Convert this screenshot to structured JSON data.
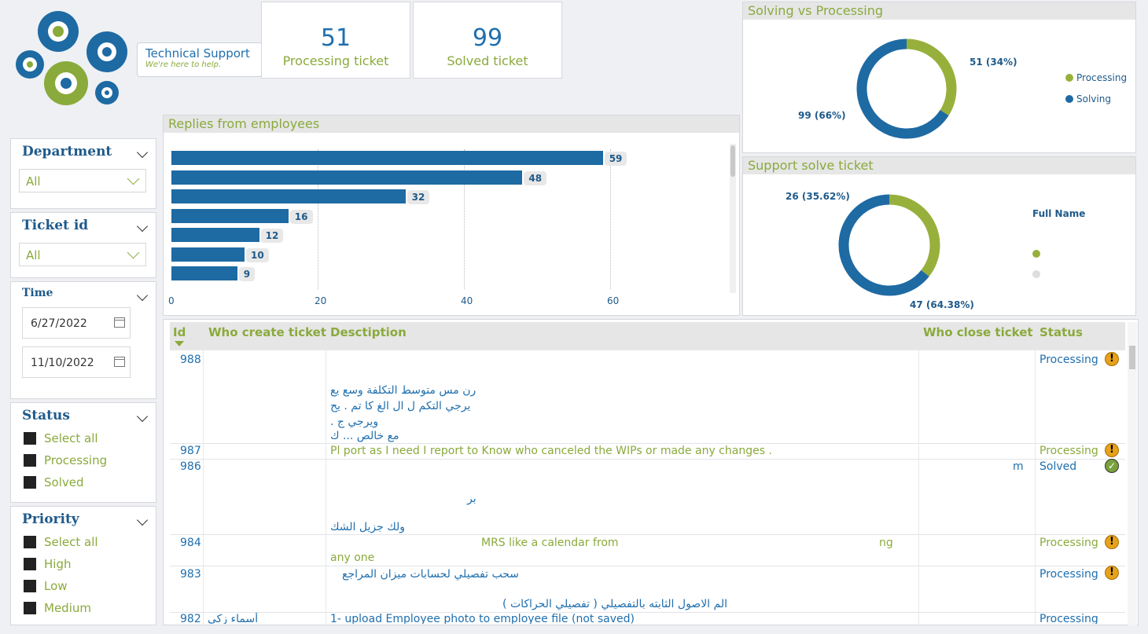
{
  "logo": {
    "title": "Technical Support",
    "tagline": "We're here to help."
  },
  "kpis": [
    {
      "value": "51",
      "label": "Processing ticket"
    },
    {
      "value": "99",
      "label": "Solved ticket"
    }
  ],
  "slicers": {
    "department": {
      "title": "Department",
      "value": "All"
    },
    "ticket_id": {
      "title": "Ticket id",
      "value": "All"
    },
    "time": {
      "title": "Time",
      "start": "6/27/2022",
      "end": "11/10/2022"
    },
    "status": {
      "title": "Status",
      "options": [
        "Select all",
        "Processing",
        "Solved"
      ]
    },
    "priority": {
      "title": "Priority",
      "options": [
        "Select all",
        "High",
        "Low",
        "Medium"
      ]
    }
  },
  "replies_chart": {
    "title": "Replies from employees"
  },
  "chart_data": [
    {
      "type": "bar",
      "title": "Replies from employees",
      "orientation": "horizontal",
      "values": [
        59,
        48,
        32,
        16,
        12,
        10,
        9
      ],
      "xlim": [
        0,
        60
      ],
      "xticks": [
        "0",
        "20",
        "40",
        "60"
      ],
      "grid": true
    },
    {
      "type": "pie",
      "title": "Solving vs Processing",
      "donut": true,
      "slices": [
        {
          "name": "Processing",
          "value": 51,
          "label": "51 (34%)",
          "color": "#97b03c"
        },
        {
          "name": "Solving",
          "value": 99,
          "label": "99 (66%)",
          "color": "#1e6aa3"
        }
      ],
      "legend": "right"
    },
    {
      "type": "pie",
      "title": "Support solve ticket",
      "donut": true,
      "slices": [
        {
          "value": 26,
          "label": "26 (35.62%)",
          "color": "#97b03c"
        },
        {
          "value": 47,
          "label": "47 (64.38%)",
          "color": "#1e6aa3"
        }
      ],
      "legend_title": "Full Name",
      "legend": "right"
    }
  ],
  "donut1": {
    "title": "Solving vs Processing",
    "legend": [
      "Processing",
      "Solving"
    ]
  },
  "donut2": {
    "title": "Support solve ticket",
    "legend_title": "Full Name"
  },
  "table": {
    "headers": {
      "id": "Id",
      "creator": "Who create ticket",
      "desc": "Desctiption",
      "closer": "Who close ticket",
      "status": "Status"
    },
    "rows": [
      {
        "id": "988",
        "desc": [
          "رن مس متوسط التكلفة وسع يع",
          "يرجي التكم ل ال الغ كا تم . يح",
          "ويرجي ج .",
          "مع خالص ... ك"
        ],
        "status": "Processing",
        "icon": "warning"
      },
      {
        "id": "987",
        "desc": [
          "Pl port as I need I report to Know who canceled the WIPs or made any changes ."
        ],
        "status": "Processing",
        "icon": "warning"
      },
      {
        "id": "986",
        "desc": [
          "بر",
          "ولك جزيل الشك"
        ],
        "tail": "m",
        "status": "Solved",
        "icon": "check"
      },
      {
        "id": "984",
        "desc": [
          "MRS like a calendar from",
          "any one"
        ],
        "tail": "ng",
        "status": "Processing",
        "icon": "warning"
      },
      {
        "id": "983",
        "desc": [
          "سحب تفصيلي لحسابات ميزان المراجع",
          "الم الاصول الثابته بالتفصيلي ( تفصيلي الحراكات )"
        ],
        "status": "Processing",
        "icon": "warning"
      },
      {
        "id": "982",
        "creator": "أسماء زكي",
        "desc": [
          "1- upload Employee photo to employee file (not saved)"
        ],
        "status": "Processing",
        "icon": "warning"
      }
    ]
  }
}
